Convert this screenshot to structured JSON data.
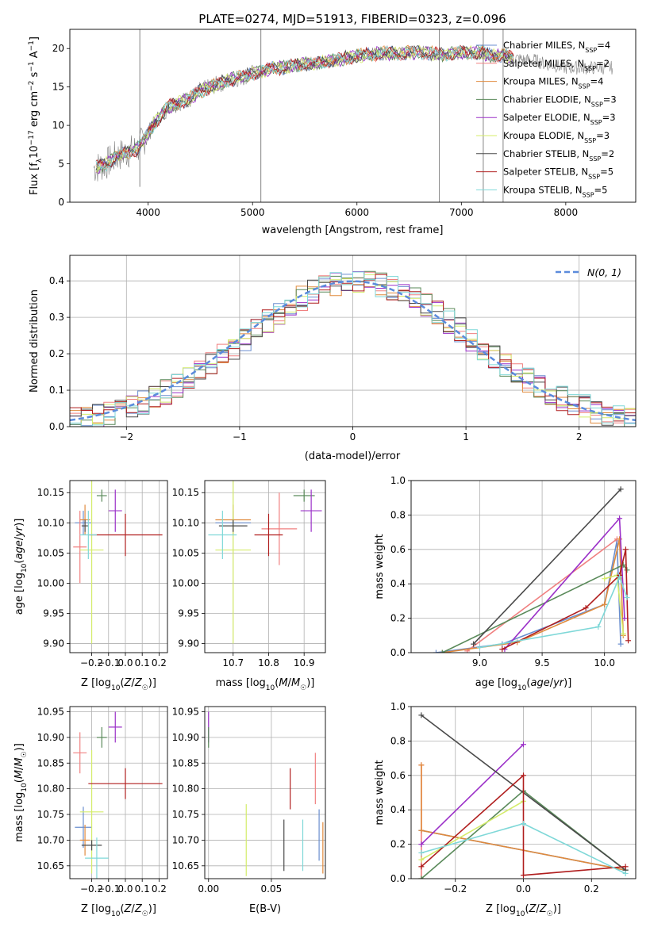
{
  "figure_title": "PLATE=0274, MJD=51913, FIBERID=0323, z=0.096",
  "colors": {
    "MILES_chabrier": "#6a8ecf",
    "MILES_salpeter": "#f08080",
    "MILES_kroupa": "#e08a3c",
    "ELODIE_chabrier": "#5a8a5a",
    "ELODIE_salpeter": "#9b30c8",
    "ELODIE_kroupa": "#d4ec6a",
    "STELIB_chabrier": "#4a4a4a",
    "STELIB_salpeter": "#b01e1e",
    "STELIB_kroupa": "#7fd8d8",
    "normal": "#5b8bdc",
    "data": "#7f7f7f",
    "grid": "#b0b0b0"
  },
  "chart_data": [
    {
      "type": "line",
      "title": "PLATE=0274, MJD=51913, FIBERID=0323, z=0.096",
      "xlabel": "wavelength [Angstrom, rest frame]",
      "ylabel": "Flux [f_λ 10^-17 erg cm^-2 s^-1 A^-1]",
      "xlim": [
        3250,
        8670
      ],
      "ylim": [
        0,
        22.5
      ],
      "xticks": [
        4000,
        5000,
        6000,
        7000,
        8000
      ],
      "yticks": [
        0,
        5,
        10,
        15,
        20
      ],
      "legend_position": "right",
      "data_series": {
        "name": "data",
        "x": [
          3500,
          3600,
          3700,
          3800,
          3900,
          4000,
          4100,
          4200,
          4300,
          4400,
          4500,
          4600,
          4700,
          4800,
          4900,
          5000,
          5100,
          5200,
          5300,
          5400,
          5500,
          5600,
          5700,
          5800,
          5900,
          6000,
          6100,
          6200,
          6300,
          6400,
          6500,
          6600,
          6700,
          6800,
          6900,
          7000,
          7100,
          7200,
          7300,
          7400,
          7500,
          7600,
          7700,
          7800,
          7900,
          8000
        ],
        "y": [
          4.5,
          5.0,
          6.0,
          6.5,
          7.0,
          9.0,
          11.0,
          12.5,
          13.0,
          13.5,
          14.5,
          15.0,
          15.5,
          16.0,
          16.3,
          16.8,
          17.0,
          17.5,
          17.5,
          17.8,
          18.0,
          18.0,
          18.3,
          18.5,
          18.8,
          19.0,
          19.2,
          19.3,
          19.4,
          19.3,
          19.5,
          19.5,
          19.4,
          19.2,
          19.3,
          19.5,
          19.4,
          19.5,
          19.0,
          19.2,
          18.8,
          18.5,
          18.5,
          18.0,
          17.8,
          17.5
        ]
      },
      "series": [
        {
          "name": "Chabrier MILES, N_SSP=4",
          "legend_label": "Chabrier MILES, N",
          "ssp": "4"
        },
        {
          "name": "Salpeter MILES, N_SSP=2",
          "legend_label": "Salpeter MILES, N",
          "ssp": "2"
        },
        {
          "name": "Kroupa MILES, N_SSP=4",
          "legend_label": "Kroupa MILES, N",
          "ssp": "4"
        },
        {
          "name": "Chabrier ELODIE, N_SSP=3",
          "legend_label": "Chabrier ELODIE, N",
          "ssp": "3"
        },
        {
          "name": "Salpeter ELODIE, N_SSP=3",
          "legend_label": "Salpeter ELODIE, N",
          "ssp": "3"
        },
        {
          "name": "Kroupa ELODIE, N_SSP=3",
          "legend_label": "Kroupa ELODIE, N",
          "ssp": "3"
        },
        {
          "name": "Chabrier STELIB, N_SSP=2",
          "legend_label": "Chabrier STELIB, N",
          "ssp": "2"
        },
        {
          "name": "Salpeter STELIB, N_SSP=5",
          "legend_label": "Salpeter STELIB, N",
          "ssp": "5"
        },
        {
          "name": "Kroupa STELIB, N_SSP=5",
          "legend_label": "Kroupa STELIB, N",
          "ssp": "5"
        }
      ]
    },
    {
      "type": "line",
      "title": "",
      "xlabel": "(data-model)/error",
      "ylabel": "Normed distribution",
      "xlim": [
        -2.5,
        2.5
      ],
      "ylim": [
        0,
        0.47
      ],
      "xticks": [
        -2,
        -1,
        0,
        1,
        2
      ],
      "yticks": [
        0.0,
        0.1,
        0.2,
        0.3,
        0.4
      ],
      "legend_position": "upper right",
      "normal_label": "N(0, 1)",
      "hist_x": [
        -2.4,
        -2.2,
        -2.0,
        -1.8,
        -1.6,
        -1.4,
        -1.2,
        -1.0,
        -0.8,
        -0.6,
        -0.4,
        -0.2,
        0.0,
        0.2,
        0.4,
        0.6,
        0.8,
        1.0,
        1.2,
        1.4,
        1.6,
        1.8,
        2.0,
        2.2,
        2.4
      ],
      "hist_y": [
        0.04,
        0.05,
        0.07,
        0.11,
        0.12,
        0.16,
        0.18,
        0.21,
        0.27,
        0.3,
        0.33,
        0.37,
        0.38,
        0.36,
        0.34,
        0.31,
        0.27,
        0.24,
        0.19,
        0.16,
        0.13,
        0.1,
        0.08,
        0.07,
        0.06
      ]
    },
    {
      "type": "scatter",
      "xlabel": "Z [log10(Z/Z☉)]",
      "ylabel": "age [log10(age/yr)]",
      "xlim": [
        -0.33,
        0.25
      ],
      "ylim": [
        9.885,
        10.17
      ],
      "xticks": [
        -0.2,
        -0.1,
        0.0,
        0.1,
        0.2
      ],
      "yticks": [
        9.9,
        9.95,
        10.0,
        10.05,
        10.1,
        10.15
      ],
      "points": [
        {
          "x": -0.25,
          "y": 10.1,
          "xerr": 0.05,
          "yerr": 0.02,
          "color": "#6a8ecf"
        },
        {
          "x": -0.27,
          "y": 10.06,
          "xerr": 0.04,
          "yerr": 0.06,
          "color": "#f08080"
        },
        {
          "x": -0.24,
          "y": 10.105,
          "xerr": 0.03,
          "yerr": 0.025,
          "color": "#e08a3c"
        },
        {
          "x": -0.14,
          "y": 10.145,
          "xerr": 0.03,
          "yerr": 0.01,
          "color": "#5a8a5a"
        },
        {
          "x": -0.06,
          "y": 10.12,
          "xerr": 0.04,
          "yerr": 0.035,
          "color": "#9b30c8"
        },
        {
          "x": -0.2,
          "y": 10.055,
          "xerr": 0.07,
          "yerr": 0.155,
          "color": "#d4ec6a"
        },
        {
          "x": -0.24,
          "y": 10.095,
          "xerr": 0.02,
          "yerr": 0.01,
          "color": "#4a4a4a"
        },
        {
          "x": 0.0,
          "y": 10.08,
          "xerr": 0.22,
          "yerr": 0.035,
          "color": "#b01e1e"
        },
        {
          "x": -0.22,
          "y": 10.08,
          "xerr": 0.05,
          "yerr": 0.04,
          "color": "#7fd8d8"
        }
      ]
    },
    {
      "type": "scatter",
      "xlabel": "mass [log10(M/M☉)]",
      "ylabel": "",
      "xlim": [
        10.62,
        10.96
      ],
      "ylim": [
        9.885,
        10.17
      ],
      "xticks": [
        10.7,
        10.8,
        10.9
      ],
      "yticks": [
        9.9,
        9.95,
        10.0,
        10.05,
        10.1,
        10.15
      ],
      "points": [
        {
          "x": 10.7,
          "y": 10.1,
          "xerr": 0.05,
          "yerr": 0.02,
          "color": "#6a8ecf"
        },
        {
          "x": 10.83,
          "y": 10.09,
          "xerr": 0.05,
          "yerr": 0.06,
          "color": "#f08080"
        },
        {
          "x": 10.7,
          "y": 10.105,
          "xerr": 0.05,
          "yerr": 0.025,
          "color": "#e08a3c"
        },
        {
          "x": 10.9,
          "y": 10.145,
          "xerr": 0.03,
          "yerr": 0.01,
          "color": "#5a8a5a"
        },
        {
          "x": 10.92,
          "y": 10.12,
          "xerr": 0.03,
          "yerr": 0.035,
          "color": "#9b30c8"
        },
        {
          "x": 10.7,
          "y": 10.055,
          "xerr": 0.05,
          "yerr": 0.155,
          "color": "#d4ec6a"
        },
        {
          "x": 10.7,
          "y": 10.095,
          "xerr": 0.04,
          "yerr": 0.01,
          "color": "#4a4a4a"
        },
        {
          "x": 10.8,
          "y": 10.08,
          "xerr": 0.04,
          "yerr": 0.035,
          "color": "#b01e1e"
        },
        {
          "x": 10.67,
          "y": 10.08,
          "xerr": 0.04,
          "yerr": 0.04,
          "color": "#7fd8d8"
        }
      ]
    },
    {
      "type": "line",
      "xlabel": "age [log10(age/yr)]",
      "ylabel": "mass weight",
      "xlim": [
        8.45,
        10.25
      ],
      "ylim": [
        0,
        1.0
      ],
      "xticks": [
        9.0,
        9.5,
        10.0
      ],
      "yticks": [
        0.0,
        0.2,
        0.4,
        0.6,
        0.8,
        1.0
      ],
      "series": [
        {
          "color": "#6a8ecf",
          "x": [
            8.65,
            9.18,
            10.0,
            10.1,
            10.13
          ],
          "y": [
            0.0,
            0.05,
            0.28,
            0.65,
            0.05
          ]
        },
        {
          "color": "#f08080",
          "x": [
            8.9,
            10.1
          ],
          "y": [
            0.01,
            0.66
          ]
        },
        {
          "color": "#e08a3c",
          "x": [
            8.7,
            9.3,
            10.0,
            10.12,
            10.15
          ],
          "y": [
            0.0,
            0.06,
            0.28,
            0.66,
            0.1
          ]
        },
        {
          "color": "#5a8a5a",
          "x": [
            8.7,
            10.15,
            10.18
          ],
          "y": [
            0.0,
            0.51,
            0.48
          ]
        },
        {
          "color": "#9b30c8",
          "x": [
            9.2,
            10.12,
            10.16
          ],
          "y": [
            0.02,
            0.78,
            0.2
          ]
        },
        {
          "color": "#d4ec6a",
          "x": [
            10.0,
            10.1,
            10.15
          ],
          "y": [
            0.43,
            0.45,
            0.11
          ]
        },
        {
          "color": "#4a4a4a",
          "x": [
            8.95,
            10.13
          ],
          "y": [
            0.05,
            0.95
          ]
        },
        {
          "color": "#b01e1e",
          "x": [
            9.18,
            9.85,
            10.12,
            10.17,
            10.19
          ],
          "y": [
            0.02,
            0.26,
            0.45,
            0.6,
            0.07
          ]
        },
        {
          "color": "#7fd8d8",
          "x": [
            9.0,
            9.95,
            10.12,
            10.18
          ],
          "y": [
            0.03,
            0.15,
            0.44,
            0.32
          ]
        }
      ]
    },
    {
      "type": "scatter",
      "xlabel": "Z [log10(Z/Z☉)]",
      "ylabel": "mass [log10(M/M☉)]",
      "xlim": [
        -0.33,
        0.25
      ],
      "ylim": [
        10.625,
        10.96
      ],
      "xticks": [
        -0.2,
        -0.1,
        0.0,
        0.1,
        0.2
      ],
      "yticks": [
        10.65,
        10.7,
        10.75,
        10.8,
        10.85,
        10.9,
        10.95
      ],
      "points": [
        {
          "x": -0.25,
          "y": 10.725,
          "xerr": 0.05,
          "yerr": 0.04,
          "color": "#6a8ecf"
        },
        {
          "x": -0.27,
          "y": 10.87,
          "xerr": 0.04,
          "yerr": 0.04,
          "color": "#f08080"
        },
        {
          "x": -0.24,
          "y": 10.7,
          "xerr": 0.03,
          "yerr": 0.03,
          "color": "#e08a3c"
        },
        {
          "x": -0.14,
          "y": 10.9,
          "xerr": 0.03,
          "yerr": 0.02,
          "color": "#5a8a5a"
        },
        {
          "x": -0.06,
          "y": 10.92,
          "xerr": 0.04,
          "yerr": 0.03,
          "color": "#9b30c8"
        },
        {
          "x": -0.2,
          "y": 10.755,
          "xerr": 0.07,
          "yerr": 0.12,
          "color": "#d4ec6a"
        },
        {
          "x": -0.2,
          "y": 10.69,
          "xerr": 0.06,
          "yerr": 0.01,
          "color": "#4a4a4a"
        },
        {
          "x": 0.0,
          "y": 10.81,
          "xerr": 0.22,
          "yerr": 0.03,
          "color": "#b01e1e"
        },
        {
          "x": -0.17,
          "y": 10.665,
          "xerr": 0.07,
          "yerr": 0.04,
          "color": "#7fd8d8"
        }
      ]
    },
    {
      "type": "scatter",
      "xlabel": "E(B-V)",
      "ylabel": "",
      "xlim": [
        -0.003,
        0.093
      ],
      "ylim": [
        10.625,
        10.96
      ],
      "xticks": [
        0.0,
        0.05
      ],
      "yticks": [
        10.65,
        10.7,
        10.75,
        10.8,
        10.85,
        10.9,
        10.95
      ],
      "points": [
        {
          "x": 0.0,
          "y": 10.92,
          "xerr": 0.0,
          "yerr": 0.03,
          "color": "#9b30c8"
        },
        {
          "x": 0.0,
          "y": 10.9,
          "xerr": 0.0,
          "yerr": 0.02,
          "color": "#5a8a5a"
        },
        {
          "x": 0.03,
          "y": 10.7,
          "xerr": 0.0,
          "yerr": 0.07,
          "color": "#d4ec6a"
        },
        {
          "x": 0.06,
          "y": 10.69,
          "xerr": 0.0,
          "yerr": 0.05,
          "color": "#4a4a4a"
        },
        {
          "x": 0.065,
          "y": 10.8,
          "xerr": 0.0,
          "yerr": 0.04,
          "color": "#b01e1e"
        },
        {
          "x": 0.075,
          "y": 10.69,
          "xerr": 0.0,
          "yerr": 0.05,
          "color": "#7fd8d8"
        },
        {
          "x": 0.085,
          "y": 10.82,
          "xerr": 0.0,
          "yerr": 0.05,
          "color": "#f08080"
        },
        {
          "x": 0.088,
          "y": 10.71,
          "xerr": 0.0,
          "yerr": 0.05,
          "color": "#6a8ecf"
        },
        {
          "x": 0.091,
          "y": 10.685,
          "xerr": 0.0,
          "yerr": 0.05,
          "color": "#e08a3c"
        }
      ]
    },
    {
      "type": "line",
      "xlabel": "Z [log10(Z/Z☉)]",
      "ylabel": "mass weight",
      "xlim": [
        -0.33,
        0.33
      ],
      "ylim": [
        0,
        1.0
      ],
      "xticks": [
        -0.2,
        0.0,
        0.2
      ],
      "yticks": [
        0.0,
        0.2,
        0.4,
        0.6,
        0.8,
        1.0
      ],
      "series": [
        {
          "color": "#6a8ecf",
          "x": [
            -0.3,
            0.3
          ],
          "y": [
            0.28,
            0.05
          ]
        },
        {
          "color": "#f08080",
          "x": [
            -0.3,
            -0.3
          ],
          "y": [
            0.0,
            0.66
          ]
        },
        {
          "color": "#e08a3c",
          "x": [
            -0.3,
            -0.3,
            0.3
          ],
          "y": [
            0.66,
            0.28,
            0.05
          ]
        },
        {
          "color": "#5a8a5a",
          "x": [
            -0.3,
            0.0,
            0.3
          ],
          "y": [
            0.0,
            0.51,
            0.05
          ]
        },
        {
          "color": "#9b30c8",
          "x": [
            -0.3,
            0.0
          ],
          "y": [
            0.2,
            0.78
          ]
        },
        {
          "color": "#d4ec6a",
          "x": [
            -0.3,
            0.0
          ],
          "y": [
            0.11,
            0.45
          ]
        },
        {
          "color": "#4a4a4a",
          "x": [
            -0.3,
            0.3
          ],
          "y": [
            0.95,
            0.05
          ]
        },
        {
          "color": "#b01e1e",
          "x": [
            -0.3,
            0.0,
            0.0,
            0.3
          ],
          "y": [
            0.07,
            0.6,
            0.02,
            0.07
          ]
        },
        {
          "color": "#7fd8d8",
          "x": [
            -0.3,
            0.0,
            0.3
          ],
          "y": [
            0.15,
            0.32,
            0.03
          ]
        }
      ]
    }
  ]
}
